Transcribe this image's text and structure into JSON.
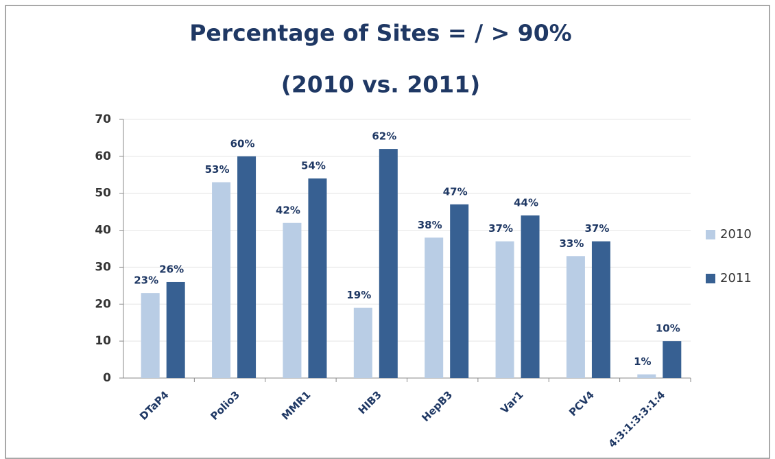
{
  "chart_data": {
    "type": "bar",
    "title": "Percentage of Sites = / > 90%",
    "subtitle": "(2010 vs. 2011)",
    "categories": [
      "DTaP4",
      "Polio3",
      "MMR1",
      "HIB3",
      "HepB3",
      "Var1",
      "PCV4",
      "4:3:1:3:3:1:4"
    ],
    "series": [
      {
        "name": "2010",
        "color": "#b9cde5",
        "values": [
          23,
          53,
          42,
          19,
          38,
          37,
          33,
          1
        ],
        "value_labels": [
          "23%",
          "53%",
          "42%",
          "19%",
          "38%",
          "37%",
          "33%",
          "1%"
        ]
      },
      {
        "name": "2011",
        "color": "#376092",
        "values": [
          26,
          60,
          54,
          62,
          47,
          44,
          37,
          10
        ],
        "value_labels": [
          "26%",
          "60%",
          "54%",
          "62%",
          "47%",
          "44%",
          "37%",
          "10%"
        ]
      }
    ],
    "ylim": [
      0,
      70
    ],
    "yticks": [
      0,
      10,
      20,
      30,
      40,
      50,
      60,
      70
    ],
    "grid": true,
    "legend": "right"
  }
}
